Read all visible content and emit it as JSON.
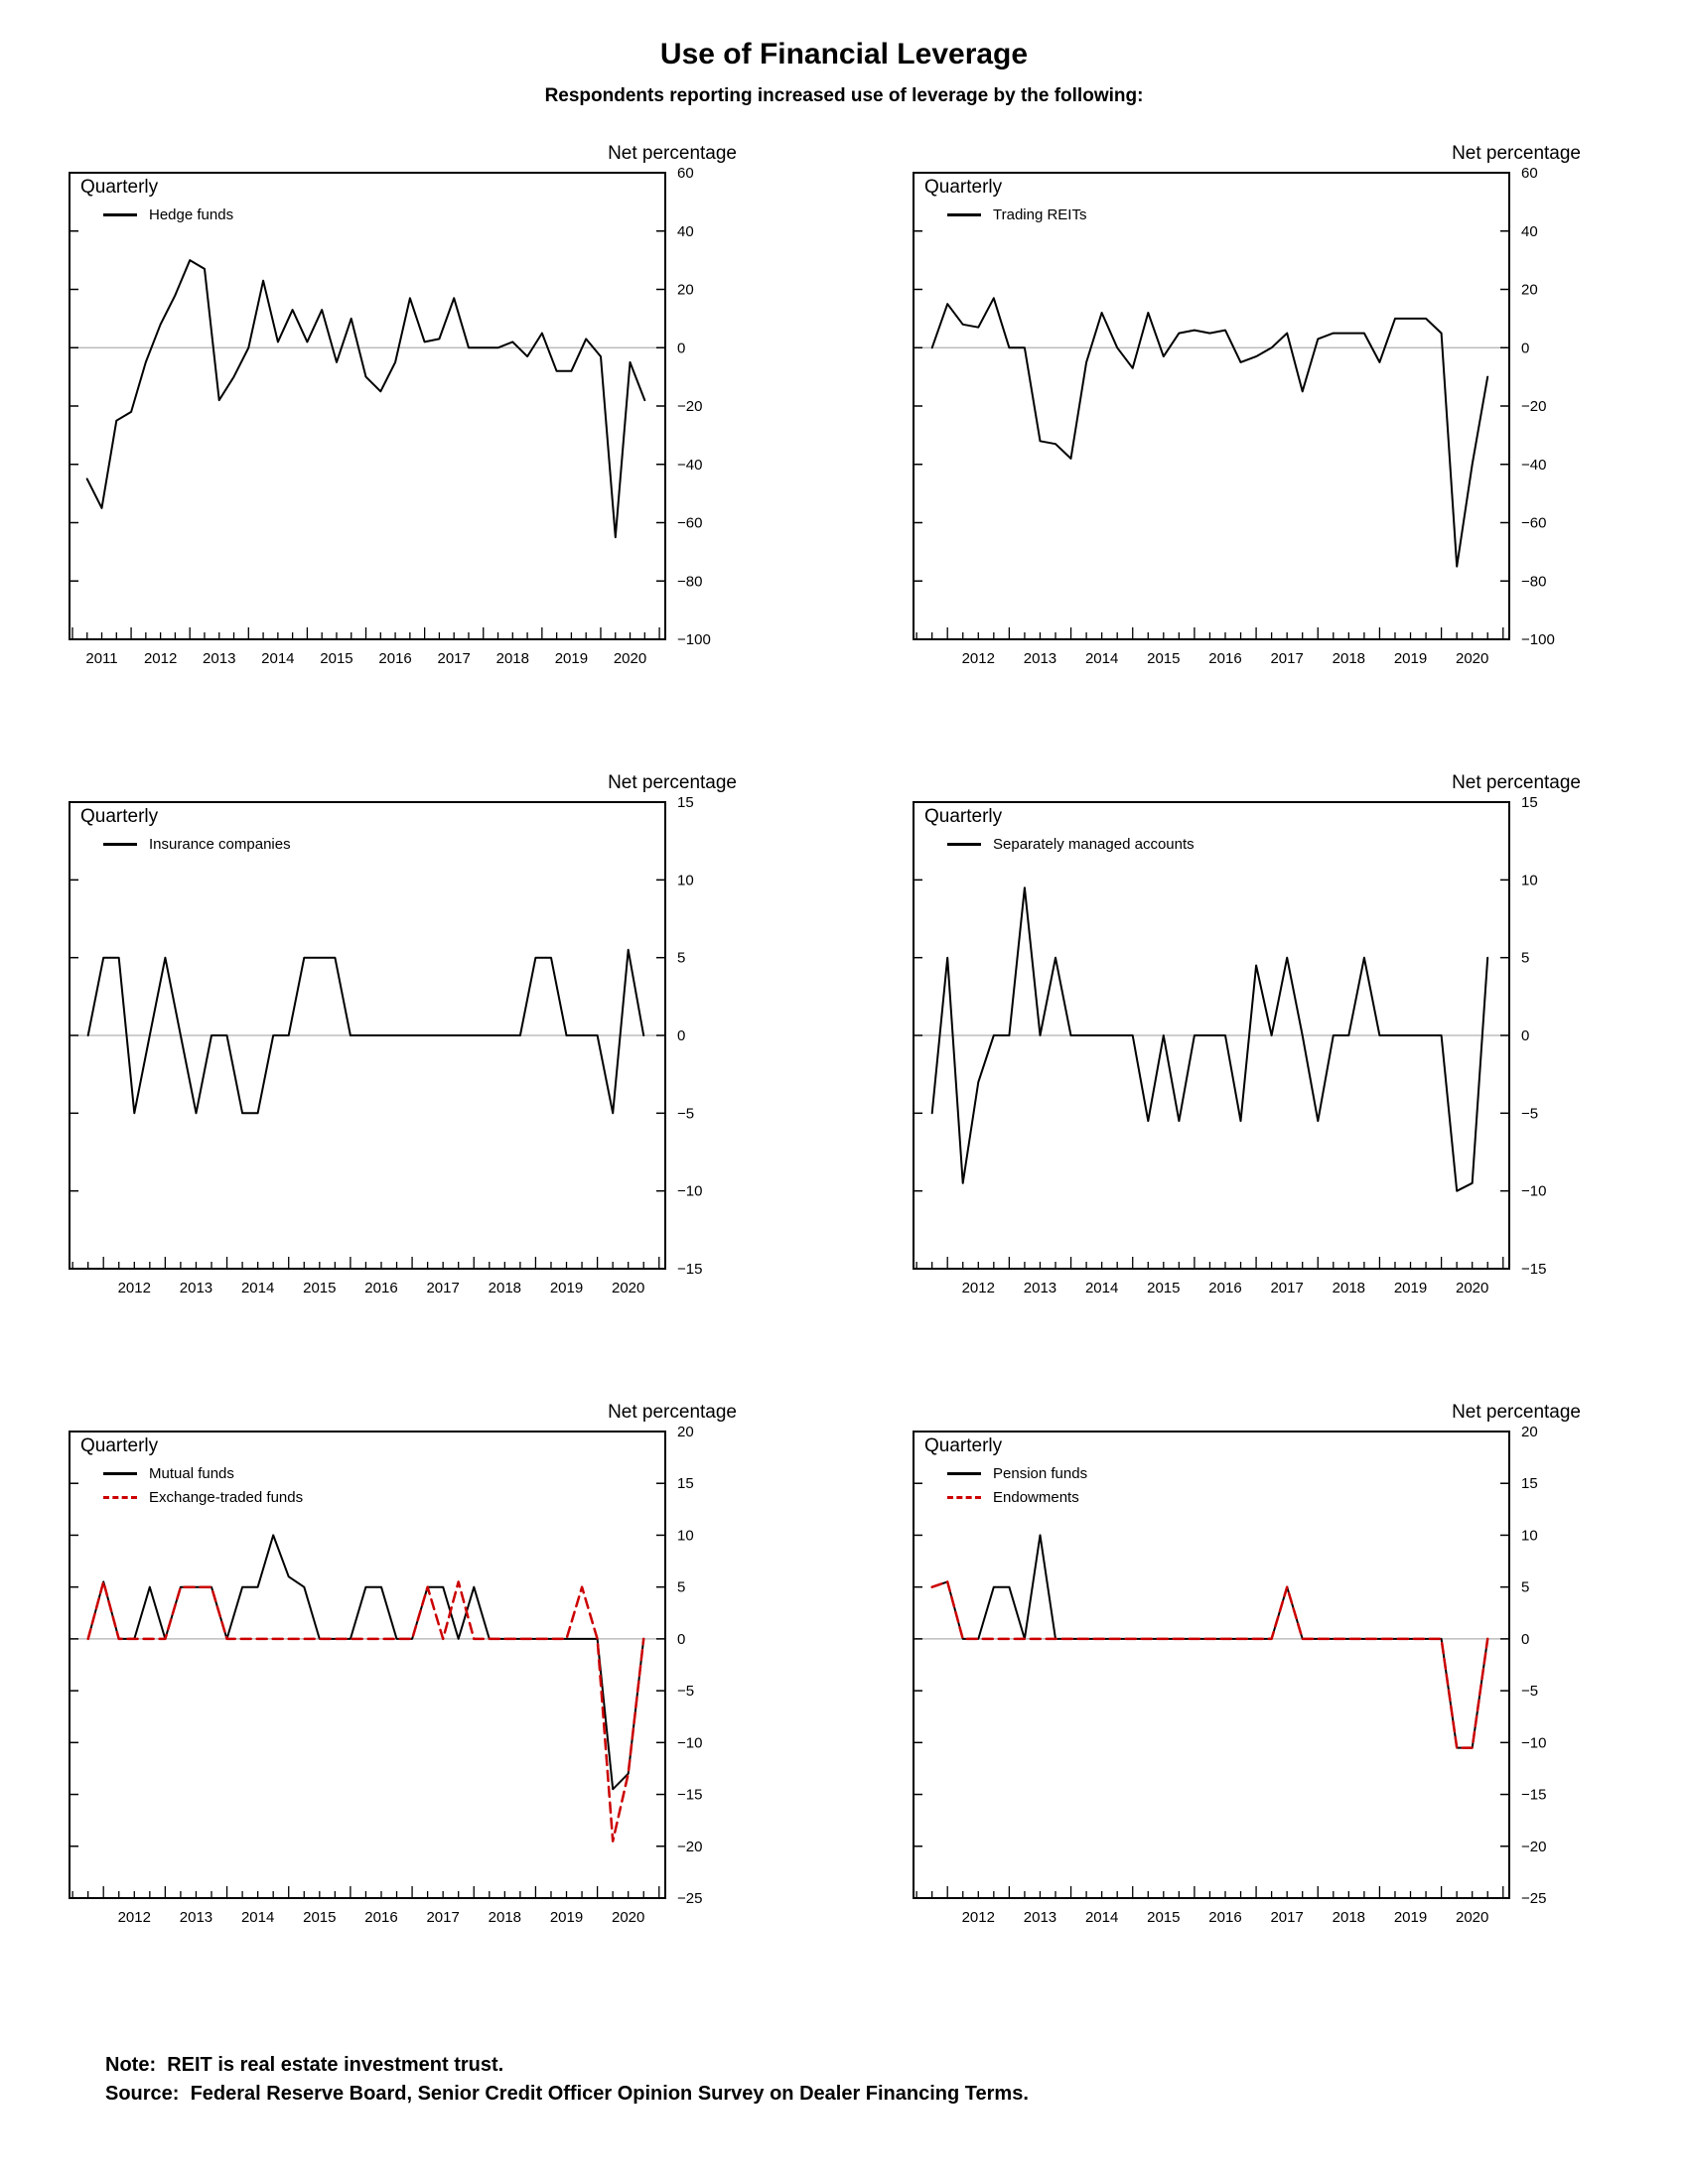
{
  "page": {
    "title": "Use of Financial Leverage",
    "subtitle": "Respondents reporting increased use of leverage by the following:",
    "frequency_label": "Quarterly",
    "axis_label": "Net percentage",
    "note": "Note:  REIT is real estate investment trust.",
    "source": "Source:  Federal Reserve Board, Senior Credit Officer Opinion Survey on Dealer Financing Terms.",
    "colors": {
      "primary_line": "#000000",
      "secondary_line": "#cc0000",
      "zero_line": "#b0b0b0",
      "frame": "#000000"
    }
  },
  "chart_data": [
    {
      "type": "line",
      "panel": "hedge-funds",
      "ylabel": "Net percentage",
      "ylim": [
        -100,
        60
      ],
      "ytick_step": 20,
      "grid": "zero-line-only",
      "legend_position": "top-left-inside",
      "categories": [
        "2011Q2",
        "2011Q3",
        "2011Q4",
        "2012Q1",
        "2012Q2",
        "2012Q3",
        "2012Q4",
        "2013Q1",
        "2013Q2",
        "2013Q3",
        "2013Q4",
        "2014Q1",
        "2014Q2",
        "2014Q3",
        "2014Q4",
        "2015Q1",
        "2015Q2",
        "2015Q3",
        "2015Q4",
        "2016Q1",
        "2016Q2",
        "2016Q3",
        "2016Q4",
        "2017Q1",
        "2017Q2",
        "2017Q3",
        "2017Q4",
        "2018Q1",
        "2018Q2",
        "2018Q3",
        "2018Q4",
        "2019Q1",
        "2019Q2",
        "2019Q3",
        "2019Q4",
        "2020Q1",
        "2020Q2",
        "2020Q3",
        "2020Q4"
      ],
      "xticklabels": [
        "2011",
        "2012",
        "2013",
        "2014",
        "2015",
        "2016",
        "2017",
        "2018",
        "2019",
        "2020"
      ],
      "series": [
        {
          "name": "Hedge funds",
          "color": "#000000",
          "dash": "solid",
          "values": [
            -45,
            -55,
            -25,
            -22,
            -5,
            8,
            18,
            30,
            27,
            -18,
            -10,
            0,
            23,
            2,
            13,
            2,
            13,
            -5,
            10,
            -10,
            -15,
            -5,
            17,
            2,
            3,
            17,
            0,
            0,
            0,
            2,
            -3,
            5,
            -8,
            -8,
            3,
            -3,
            -65,
            -5,
            -18
          ]
        }
      ]
    },
    {
      "type": "line",
      "panel": "trading-reits",
      "ylabel": "Net percentage",
      "ylim": [
        -100,
        60
      ],
      "ytick_step": 20,
      "grid": "zero-line-only",
      "legend_position": "top-left-inside",
      "categories": [
        "2011Q4",
        "2012Q1",
        "2012Q2",
        "2012Q3",
        "2012Q4",
        "2013Q1",
        "2013Q2",
        "2013Q3",
        "2013Q4",
        "2014Q1",
        "2014Q2",
        "2014Q3",
        "2014Q4",
        "2015Q1",
        "2015Q2",
        "2015Q3",
        "2015Q4",
        "2016Q1",
        "2016Q2",
        "2016Q3",
        "2016Q4",
        "2017Q1",
        "2017Q2",
        "2017Q3",
        "2017Q4",
        "2018Q1",
        "2018Q2",
        "2018Q3",
        "2018Q4",
        "2019Q1",
        "2019Q2",
        "2019Q3",
        "2019Q4",
        "2020Q1",
        "2020Q2",
        "2020Q3",
        "2020Q4"
      ],
      "xticklabels": [
        "2012",
        "2013",
        "2014",
        "2015",
        "2016",
        "2017",
        "2018",
        "2019",
        "2020"
      ],
      "series": [
        {
          "name": "Trading REITs",
          "color": "#000000",
          "dash": "solid",
          "values": [
            0,
            15,
            8,
            7,
            17,
            0,
            0,
            -32,
            -33,
            -38,
            -5,
            12,
            0,
            -7,
            12,
            -3,
            5,
            6,
            5,
            6,
            -5,
            -3,
            0,
            5,
            -15,
            3,
            5,
            5,
            5,
            -5,
            10,
            10,
            10,
            5,
            -75,
            -40,
            -10
          ]
        }
      ]
    },
    {
      "type": "line",
      "panel": "insurance-companies",
      "ylabel": "Net percentage",
      "ylim": [
        -15,
        15
      ],
      "ytick_step": 5,
      "grid": "zero-line-only",
      "legend_position": "top-left-inside",
      "categories": [
        "2011Q4",
        "2012Q1",
        "2012Q2",
        "2012Q3",
        "2012Q4",
        "2013Q1",
        "2013Q2",
        "2013Q3",
        "2013Q4",
        "2014Q1",
        "2014Q2",
        "2014Q3",
        "2014Q4",
        "2015Q1",
        "2015Q2",
        "2015Q3",
        "2015Q4",
        "2016Q1",
        "2016Q2",
        "2016Q3",
        "2016Q4",
        "2017Q1",
        "2017Q2",
        "2017Q3",
        "2017Q4",
        "2018Q1",
        "2018Q2",
        "2018Q3",
        "2018Q4",
        "2019Q1",
        "2019Q2",
        "2019Q3",
        "2019Q4",
        "2020Q1",
        "2020Q2",
        "2020Q3",
        "2020Q4"
      ],
      "xticklabels": [
        "2012",
        "2013",
        "2014",
        "2015",
        "2016",
        "2017",
        "2018",
        "2019",
        "2020"
      ],
      "series": [
        {
          "name": "Insurance companies",
          "color": "#000000",
          "dash": "solid",
          "values": [
            0,
            5,
            5,
            -5,
            0,
            5,
            0,
            -5,
            0,
            0,
            -5,
            -5,
            0,
            0,
            5,
            5,
            5,
            0,
            0,
            0,
            0,
            0,
            0,
            0,
            0,
            0,
            0,
            0,
            0,
            5,
            5,
            0,
            0,
            0,
            -5,
            5.5,
            0
          ]
        }
      ]
    },
    {
      "type": "line",
      "panel": "separately-managed-accounts",
      "ylabel": "Net percentage",
      "ylim": [
        -15,
        15
      ],
      "ytick_step": 5,
      "grid": "zero-line-only",
      "legend_position": "top-left-inside",
      "categories": [
        "2011Q4",
        "2012Q1",
        "2012Q2",
        "2012Q3",
        "2012Q4",
        "2013Q1",
        "2013Q2",
        "2013Q3",
        "2013Q4",
        "2014Q1",
        "2014Q2",
        "2014Q3",
        "2014Q4",
        "2015Q1",
        "2015Q2",
        "2015Q3",
        "2015Q4",
        "2016Q1",
        "2016Q2",
        "2016Q3",
        "2016Q4",
        "2017Q1",
        "2017Q2",
        "2017Q3",
        "2017Q4",
        "2018Q1",
        "2018Q2",
        "2018Q3",
        "2018Q4",
        "2019Q1",
        "2019Q2",
        "2019Q3",
        "2019Q4",
        "2020Q1",
        "2020Q2",
        "2020Q3",
        "2020Q4"
      ],
      "xticklabels": [
        "2012",
        "2013",
        "2014",
        "2015",
        "2016",
        "2017",
        "2018",
        "2019",
        "2020"
      ],
      "series": [
        {
          "name": "Separately managed accounts",
          "color": "#000000",
          "dash": "solid",
          "values": [
            -5,
            5,
            -9.5,
            -3,
            0,
            0,
            9.5,
            0,
            5,
            0,
            0,
            0,
            0,
            0,
            -5.5,
            0,
            -5.5,
            0,
            0,
            0,
            -5.5,
            4.5,
            0,
            5,
            0,
            -5.5,
            0,
            0,
            5,
            0,
            0,
            0,
            0,
            0,
            -10,
            -9.5,
            5
          ]
        }
      ]
    },
    {
      "type": "line",
      "panel": "mutual-funds-etfs",
      "ylabel": "Net percentage",
      "ylim": [
        -25,
        20
      ],
      "ytick_step": 5,
      "grid": "zero-line-only",
      "legend_position": "top-left-inside",
      "categories": [
        "2011Q4",
        "2012Q1",
        "2012Q2",
        "2012Q3",
        "2012Q4",
        "2013Q1",
        "2013Q2",
        "2013Q3",
        "2013Q4",
        "2014Q1",
        "2014Q2",
        "2014Q3",
        "2014Q4",
        "2015Q1",
        "2015Q2",
        "2015Q3",
        "2015Q4",
        "2016Q1",
        "2016Q2",
        "2016Q3",
        "2016Q4",
        "2017Q1",
        "2017Q2",
        "2017Q3",
        "2017Q4",
        "2018Q1",
        "2018Q2",
        "2018Q3",
        "2018Q4",
        "2019Q1",
        "2019Q2",
        "2019Q3",
        "2019Q4",
        "2020Q1",
        "2020Q2",
        "2020Q3",
        "2020Q4"
      ],
      "xticklabels": [
        "2012",
        "2013",
        "2014",
        "2015",
        "2016",
        "2017",
        "2018",
        "2019",
        "2020"
      ],
      "series": [
        {
          "name": "Mutual funds",
          "color": "#000000",
          "dash": "solid",
          "values": [
            0,
            5.5,
            0,
            0,
            5,
            0,
            5,
            5,
            5,
            0,
            5,
            5,
            10,
            6,
            5,
            0,
            0,
            0,
            5,
            5,
            0,
            0,
            5,
            5,
            0,
            5,
            0,
            0,
            0,
            0,
            0,
            0,
            0,
            0,
            -14.5,
            -13,
            0
          ]
        },
        {
          "name": "Exchange-traded funds",
          "color": "#cc0000",
          "dash": "dashed",
          "values": [
            0,
            5.5,
            0,
            0,
            0,
            0,
            5,
            5,
            5,
            0,
            0,
            0,
            0,
            0,
            0,
            0,
            0,
            0,
            0,
            0,
            0,
            0,
            5,
            0,
            5.5,
            0,
            0,
            0,
            0,
            0,
            0,
            0,
            5,
            0,
            -19.5,
            -13,
            0
          ]
        }
      ]
    },
    {
      "type": "line",
      "panel": "pension-funds-endowments",
      "ylabel": "Net percentage",
      "ylim": [
        -25,
        20
      ],
      "ytick_step": 5,
      "grid": "zero-line-only",
      "legend_position": "top-left-inside",
      "categories": [
        "2011Q4",
        "2012Q1",
        "2012Q2",
        "2012Q3",
        "2012Q4",
        "2013Q1",
        "2013Q2",
        "2013Q3",
        "2013Q4",
        "2014Q1",
        "2014Q2",
        "2014Q3",
        "2014Q4",
        "2015Q1",
        "2015Q2",
        "2015Q3",
        "2015Q4",
        "2016Q1",
        "2016Q2",
        "2016Q3",
        "2016Q4",
        "2017Q1",
        "2017Q2",
        "2017Q3",
        "2017Q4",
        "2018Q1",
        "2018Q2",
        "2018Q3",
        "2018Q4",
        "2019Q1",
        "2019Q2",
        "2019Q3",
        "2019Q4",
        "2020Q1",
        "2020Q2",
        "2020Q3",
        "2020Q4"
      ],
      "xticklabels": [
        "2012",
        "2013",
        "2014",
        "2015",
        "2016",
        "2017",
        "2018",
        "2019",
        "2020"
      ],
      "series": [
        {
          "name": "Pension funds",
          "color": "#000000",
          "dash": "solid",
          "values": [
            5,
            5.5,
            0,
            0,
            5,
            5,
            0,
            10,
            0,
            0,
            0,
            0,
            0,
            0,
            0,
            0,
            0,
            0,
            0,
            0,
            0,
            0,
            0,
            5,
            0,
            0,
            0,
            0,
            0,
            0,
            0,
            0,
            0,
            0,
            -10.5,
            -10.5,
            0
          ]
        },
        {
          "name": "Endowments",
          "color": "#cc0000",
          "dash": "dashed",
          "values": [
            5,
            5.5,
            0,
            0,
            0,
            0,
            0,
            0,
            0,
            0,
            0,
            0,
            0,
            0,
            0,
            0,
            0,
            0,
            0,
            0,
            0,
            0,
            0,
            5,
            0,
            0,
            0,
            0,
            0,
            0,
            0,
            0,
            0,
            0,
            -10.5,
            -10.5,
            0
          ]
        }
      ]
    }
  ]
}
